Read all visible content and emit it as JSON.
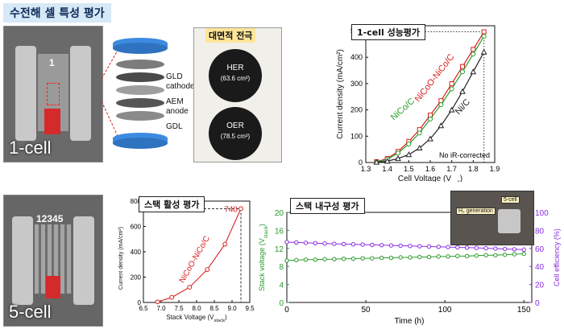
{
  "header": {
    "title": "수전해 셀 특성 평가"
  },
  "photos": {
    "one_cell": {
      "label": "1-cell",
      "stack_digit": "1"
    },
    "five_cell": {
      "label": "5-cell",
      "stack_digits": "12345"
    }
  },
  "exploded_view": {
    "labels": [
      "GLD",
      "cathode",
      "AEM",
      "anode",
      "GDL"
    ]
  },
  "electrode": {
    "title": "대면적 전극",
    "her_label": "HER",
    "her_area": "(63.6 cm²)",
    "oer_label": "OER",
    "oer_area": "(78.5 cm²)"
  },
  "colors": {
    "red": "#d81f1f",
    "green": "#2a9a2a",
    "black": "#222222",
    "purple": "#8a2be2"
  },
  "chart_data": [
    {
      "type": "line",
      "title": "1-cell 성능평가",
      "xlabel": "Cell Voltage (V",
      "xlabel_sub": "cell",
      "xlabel_close": ")",
      "ylabel": "Current density (mA/cm²)",
      "xlim": [
        1.3,
        1.9
      ],
      "ylim": [
        0,
        520
      ],
      "xticks": [
        "1.3",
        "1.4",
        "1.5",
        "1.6",
        "1.7",
        "1.8",
        "1.9"
      ],
      "yticks": [
        "0",
        "100",
        "200",
        "300",
        "400",
        "500"
      ],
      "note": "No iR-corrected",
      "series": [
        {
          "name": "NiCoO-NiCo/C",
          "color": "#d81f1f",
          "x": [
            1.35,
            1.4,
            1.45,
            1.5,
            1.55,
            1.6,
            1.65,
            1.7,
            1.75,
            1.8,
            1.85
          ],
          "y": [
            3,
            15,
            42,
            80,
            125,
            180,
            235,
            300,
            365,
            430,
            497
          ]
        },
        {
          "name": "NiCo/C",
          "color": "#2a9a2a",
          "x": [
            1.35,
            1.4,
            1.45,
            1.5,
            1.55,
            1.6,
            1.65,
            1.7,
            1.75,
            1.8,
            1.85
          ],
          "y": [
            2,
            12,
            36,
            70,
            112,
            165,
            220,
            280,
            345,
            412,
            480
          ]
        },
        {
          "name": "Ni/C",
          "color": "#222222",
          "x": [
            1.35,
            1.4,
            1.45,
            1.5,
            1.55,
            1.6,
            1.65,
            1.7,
            1.75,
            1.8,
            1.85
          ],
          "y": [
            1,
            5,
            15,
            30,
            55,
            90,
            140,
            200,
            270,
            345,
            420
          ]
        }
      ]
    },
    {
      "type": "line",
      "title": "스택 활성 평가",
      "xlabel": "Stack Voltage (V",
      "xlabel_sub": "stack",
      "xlabel_close": ")",
      "ylabel": "Current density (mA/cm²)",
      "xlim": [
        6.5,
        9.5
      ],
      "ylim": [
        0,
        800
      ],
      "xticks": [
        "6.5",
        "7.0",
        "7.5",
        "8.0",
        "8.5",
        "9.0",
        "9.5"
      ],
      "yticks": [
        "0",
        "200",
        "400",
        "600",
        "800"
      ],
      "annotation": "740",
      "series": [
        {
          "name": "NiCoO-NiCo/C",
          "color": "#d81f1f",
          "x": [
            6.9,
            7.3,
            7.8,
            8.3,
            8.8,
            9.25
          ],
          "y": [
            5,
            40,
            120,
            260,
            460,
            740
          ]
        }
      ]
    },
    {
      "type": "line",
      "title": "스택 내구성 평가",
      "xlabel": "Time (h)",
      "ylabel": "Stack voltage (V",
      "ylabel_sub": "stack",
      "ylabel_close": ")",
      "y2label": "Cell efficiency (%)",
      "xlim": [
        0,
        155
      ],
      "ylim": [
        0,
        20
      ],
      "y2lim": [
        0,
        100
      ],
      "xticks": [
        "0",
        "50",
        "100",
        "150"
      ],
      "yticks": [
        "0",
        "4",
        "8",
        "12",
        "16",
        "20"
      ],
      "y2ticks": [
        "0",
        "20",
        "40",
        "60",
        "80",
        "100"
      ],
      "inset_labels": [
        "H₂ generation",
        "5-cell"
      ],
      "series": [
        {
          "axis": "left",
          "color": "#2a9a2a",
          "x": [
            0,
            6,
            12,
            18,
            24,
            30,
            36,
            42,
            48,
            54,
            60,
            66,
            72,
            78,
            84,
            90,
            96,
            102,
            108,
            114,
            120,
            126,
            132,
            138,
            144,
            150
          ],
          "y": [
            9.3,
            9.4,
            9.5,
            9.5,
            9.6,
            9.6,
            9.7,
            9.7,
            9.8,
            9.8,
            9.9,
            9.9,
            10.0,
            10.0,
            10.1,
            10.1,
            10.2,
            10.2,
            10.3,
            10.3,
            10.4,
            10.5,
            10.5,
            10.6,
            10.7,
            10.8
          ]
        },
        {
          "axis": "right",
          "color": "#8a2be2",
          "x": [
            0,
            6,
            12,
            18,
            24,
            30,
            36,
            42,
            48,
            54,
            60,
            66,
            72,
            78,
            84,
            90,
            96,
            102,
            108,
            114,
            120,
            126,
            132,
            138,
            144,
            150
          ],
          "y": [
            67,
            66.6,
            66.2,
            65.8,
            65.4,
            65.1,
            64.8,
            64.5,
            64.2,
            63.9,
            63.6,
            63.3,
            63.0,
            62.7,
            62.4,
            62.1,
            61.8,
            61.5,
            61.2,
            60.9,
            60.6,
            60.2,
            59.8,
            59.4,
            59.0,
            58.6
          ]
        }
      ]
    }
  ]
}
